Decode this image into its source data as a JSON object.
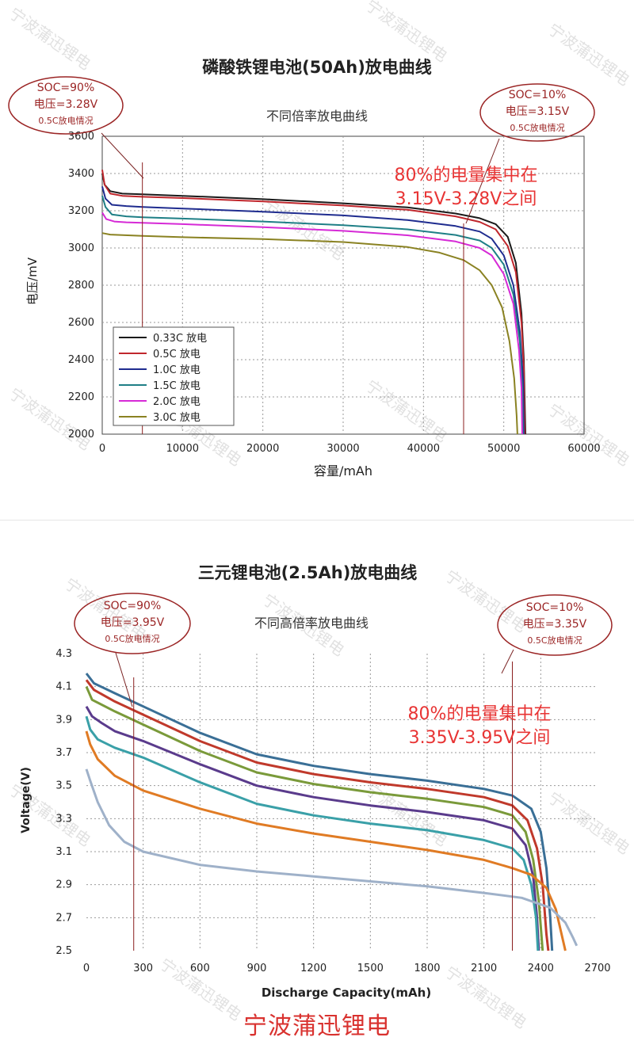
{
  "brand": "宁波蒲迅锂电",
  "watermark_text": "宁波蒲迅锂电",
  "chart_data": [
    {
      "type": "line",
      "title": "磷酸铁锂电池(50Ah)放电曲线",
      "subtitle": "不同倍率放电曲线",
      "xlabel": "容量/mAh",
      "ylabel": "电压/mV",
      "xlim": [
        0,
        60000
      ],
      "ylim": [
        2000,
        3600
      ],
      "xticks": [
        "0",
        "10000",
        "20000",
        "30000",
        "40000",
        "50000",
        "60000"
      ],
      "yticks": [
        "2000",
        "2200",
        "2400",
        "2600",
        "2800",
        "3000",
        "3200",
        "3400",
        "3600"
      ],
      "grid": true,
      "legend_position": "bottom-left",
      "series": [
        {
          "name": "0.33C 放电",
          "color": "#1a1a1a",
          "points": [
            [
              0,
              3400
            ],
            [
              300,
              3340
            ],
            [
              1000,
              3305
            ],
            [
              2500,
              3292
            ],
            [
              5000,
              3288
            ],
            [
              10000,
              3280
            ],
            [
              20000,
              3262
            ],
            [
              30000,
              3240
            ],
            [
              38000,
              3218
            ],
            [
              44000,
              3185
            ],
            [
              47000,
              3160
            ],
            [
              49000,
              3128
            ],
            [
              50500,
              3060
            ],
            [
              51500,
              2920
            ],
            [
              52200,
              2650
            ],
            [
              52500,
              2400
            ],
            [
              52700,
              2000
            ]
          ]
        },
        {
          "name": "0.5C 放电",
          "color": "#c0272d",
          "points": [
            [
              0,
              3420
            ],
            [
              300,
              3340
            ],
            [
              1000,
              3292
            ],
            [
              2500,
              3280
            ],
            [
              5000,
              3275
            ],
            [
              10000,
              3268
            ],
            [
              20000,
              3250
            ],
            [
              30000,
              3228
            ],
            [
              38000,
              3205
            ],
            [
              44000,
              3170
            ],
            [
              47000,
              3140
            ],
            [
              49000,
              3100
            ],
            [
              50500,
              3010
            ],
            [
              51500,
              2870
            ],
            [
              52200,
              2600
            ],
            [
              52500,
              2350
            ],
            [
              52600,
              2000
            ]
          ]
        },
        {
          "name": "1.0C 放电",
          "color": "#1f2c8f",
          "points": [
            [
              0,
              3330
            ],
            [
              400,
              3265
            ],
            [
              1200,
              3232
            ],
            [
              3000,
              3225
            ],
            [
              5000,
              3220
            ],
            [
              10000,
              3212
            ],
            [
              20000,
              3195
            ],
            [
              30000,
              3175
            ],
            [
              38000,
              3150
            ],
            [
              44000,
              3118
            ],
            [
              47000,
              3088
            ],
            [
              48500,
              3050
            ],
            [
              50000,
              2960
            ],
            [
              51200,
              2800
            ],
            [
              52000,
              2550
            ],
            [
              52400,
              2300
            ],
            [
              52500,
              2000
            ]
          ]
        },
        {
          "name": "1.5C 放电",
          "color": "#1f7f86",
          "points": [
            [
              0,
              3280
            ],
            [
              400,
              3220
            ],
            [
              1200,
              3180
            ],
            [
              3000,
              3170
            ],
            [
              5000,
              3165
            ],
            [
              10000,
              3158
            ],
            [
              20000,
              3142
            ],
            [
              30000,
              3122
            ],
            [
              38000,
              3100
            ],
            [
              44000,
              3070
            ],
            [
              47000,
              3040
            ],
            [
              48500,
              3000
            ],
            [
              50000,
              2910
            ],
            [
              51200,
              2750
            ],
            [
              52000,
              2500
            ],
            [
              52300,
              2250
            ],
            [
              52400,
              2000
            ]
          ]
        },
        {
          "name": "2.0C 放电",
          "color": "#d62ad6",
          "points": [
            [
              0,
              3190
            ],
            [
              500,
              3155
            ],
            [
              1500,
              3142
            ],
            [
              3000,
              3138
            ],
            [
              5000,
              3135
            ],
            [
              10000,
              3128
            ],
            [
              20000,
              3112
            ],
            [
              30000,
              3092
            ],
            [
              38000,
              3068
            ],
            [
              44000,
              3035
            ],
            [
              47000,
              3000
            ],
            [
              48500,
              2960
            ],
            [
              50000,
              2860
            ],
            [
              51200,
              2700
            ],
            [
              51900,
              2450
            ],
            [
              52200,
              2250
            ],
            [
              52300,
              2000
            ]
          ]
        },
        {
          "name": "3.0C 放电",
          "color": "#8a8222",
          "points": [
            [
              0,
              3080
            ],
            [
              1000,
              3072
            ],
            [
              5000,
              3065
            ],
            [
              10000,
              3058
            ],
            [
              20000,
              3048
            ],
            [
              30000,
              3032
            ],
            [
              38000,
              3005
            ],
            [
              42000,
              2975
            ],
            [
              45000,
              2935
            ],
            [
              47000,
              2880
            ],
            [
              48500,
              2800
            ],
            [
              49800,
              2680
            ],
            [
              50700,
              2500
            ],
            [
              51300,
              2300
            ],
            [
              51600,
              2100
            ],
            [
              51700,
              2000
            ]
          ]
        }
      ],
      "annotations": {
        "left_circle": {
          "lines": [
            "SOC=90%",
            "电压=3.28V",
            "0.5C放电情况"
          ]
        },
        "right_circle": {
          "lines": [
            "SOC=10%",
            "电压=3.15V",
            "0.5C放电情况"
          ]
        },
        "highlight": [
          "80%的电量集中在",
          "3.15V-3.28V之间"
        ],
        "markers_x": [
          5000,
          45000
        ]
      }
    },
    {
      "type": "line",
      "title": "三元锂电池(2.5Ah)放电曲线",
      "subtitle": "不同高倍率放电曲线",
      "xlabel": "Discharge Capacity(mAh)",
      "ylabel": "Voltage(V)",
      "xlim": [
        0,
        2700
      ],
      "ylim": [
        2.5,
        4.3
      ],
      "xticks": [
        "0",
        "300",
        "600",
        "900",
        "1200",
        "1500",
        "1800",
        "2100",
        "2400",
        "2700"
      ],
      "yticks": [
        "2.5",
        "2.7",
        "2.9",
        "3.1",
        "3.3",
        "3.5",
        "3.7",
        "3.9",
        "4.1",
        "4.3"
      ],
      "grid": true,
      "series": [
        {
          "color": "#3a6f96",
          "points": [
            [
              0,
              4.18
            ],
            [
              40,
              4.12
            ],
            [
              150,
              4.06
            ],
            [
              300,
              3.98
            ],
            [
              600,
              3.82
            ],
            [
              900,
              3.69
            ],
            [
              1200,
              3.62
            ],
            [
              1500,
              3.57
            ],
            [
              1800,
              3.53
            ],
            [
              2100,
              3.48
            ],
            [
              2250,
              3.44
            ],
            [
              2350,
              3.36
            ],
            [
              2400,
              3.22
            ],
            [
              2430,
              3.0
            ],
            [
              2450,
              2.7
            ],
            [
              2460,
              2.5
            ]
          ]
        },
        {
          "color": "#c0392b",
          "points": [
            [
              0,
              4.14
            ],
            [
              40,
              4.08
            ],
            [
              150,
              4.01
            ],
            [
              300,
              3.93
            ],
            [
              600,
              3.77
            ],
            [
              900,
              3.64
            ],
            [
              1200,
              3.57
            ],
            [
              1500,
              3.52
            ],
            [
              1800,
              3.48
            ],
            [
              2100,
              3.43
            ],
            [
              2250,
              3.38
            ],
            [
              2330,
              3.29
            ],
            [
              2380,
              3.12
            ],
            [
              2410,
              2.9
            ],
            [
              2430,
              2.6
            ],
            [
              2440,
              2.5
            ]
          ]
        },
        {
          "color": "#7a9a3a",
          "points": [
            [
              0,
              4.1
            ],
            [
              30,
              4.02
            ],
            [
              150,
              3.95
            ],
            [
              300,
              3.87
            ],
            [
              600,
              3.71
            ],
            [
              900,
              3.58
            ],
            [
              1200,
              3.51
            ],
            [
              1500,
              3.46
            ],
            [
              1800,
              3.42
            ],
            [
              2100,
              3.37
            ],
            [
              2250,
              3.32
            ],
            [
              2320,
              3.22
            ],
            [
              2360,
              3.05
            ],
            [
              2390,
              2.8
            ],
            [
              2410,
              2.5
            ]
          ]
        },
        {
          "color": "#5a3b8c",
          "points": [
            [
              0,
              3.98
            ],
            [
              30,
              3.92
            ],
            [
              80,
              3.88
            ],
            [
              150,
              3.83
            ],
            [
              300,
              3.77
            ],
            [
              600,
              3.63
            ],
            [
              900,
              3.5
            ],
            [
              1200,
              3.43
            ],
            [
              1500,
              3.38
            ],
            [
              1800,
              3.34
            ],
            [
              2100,
              3.29
            ],
            [
              2250,
              3.24
            ],
            [
              2320,
              3.14
            ],
            [
              2360,
              2.95
            ],
            [
              2380,
              2.7
            ],
            [
              2390,
              2.5
            ]
          ]
        },
        {
          "color": "#3aa0a8",
          "points": [
            [
              0,
              3.92
            ],
            [
              20,
              3.84
            ],
            [
              60,
              3.78
            ],
            [
              150,
              3.73
            ],
            [
              300,
              3.67
            ],
            [
              600,
              3.52
            ],
            [
              900,
              3.39
            ],
            [
              1200,
              3.32
            ],
            [
              1500,
              3.27
            ],
            [
              1800,
              3.23
            ],
            [
              2100,
              3.17
            ],
            [
              2250,
              3.12
            ],
            [
              2310,
              3.05
            ],
            [
              2350,
              2.9
            ],
            [
              2375,
              2.7
            ],
            [
              2385,
              2.5
            ]
          ]
        },
        {
          "color": "#e07b24",
          "points": [
            [
              0,
              3.83
            ],
            [
              20,
              3.75
            ],
            [
              60,
              3.66
            ],
            [
              150,
              3.56
            ],
            [
              300,
              3.47
            ],
            [
              600,
              3.36
            ],
            [
              900,
              3.27
            ],
            [
              1200,
              3.21
            ],
            [
              1500,
              3.16
            ],
            [
              1800,
              3.11
            ],
            [
              2100,
              3.05
            ],
            [
              2250,
              3.0
            ],
            [
              2350,
              2.96
            ],
            [
              2430,
              2.88
            ],
            [
              2480,
              2.75
            ],
            [
              2510,
              2.6
            ],
            [
              2530,
              2.5
            ]
          ]
        },
        {
          "color": "#9fb1c9",
          "points": [
            [
              0,
              3.6
            ],
            [
              20,
              3.53
            ],
            [
              60,
              3.4
            ],
            [
              120,
              3.26
            ],
            [
              200,
              3.16
            ],
            [
              300,
              3.1
            ],
            [
              600,
              3.02
            ],
            [
              900,
              2.98
            ],
            [
              1200,
              2.95
            ],
            [
              1500,
              2.92
            ],
            [
              1800,
              2.89
            ],
            [
              2100,
              2.85
            ],
            [
              2300,
              2.82
            ],
            [
              2450,
              2.76
            ],
            [
              2530,
              2.67
            ],
            [
              2570,
              2.58
            ],
            [
              2590,
              2.53
            ]
          ]
        }
      ],
      "annotations": {
        "left_circle": {
          "lines": [
            "SOC=90%",
            "电压=3.95V",
            "0.5C放电情况"
          ]
        },
        "right_circle": {
          "lines": [
            "SOC=10%",
            "电压=3.35V",
            "0.5C放电情况"
          ]
        },
        "highlight": [
          "80%的电量集中在",
          "3.35V-3.95V之间"
        ],
        "markers_x": [
          250,
          2250
        ]
      }
    }
  ]
}
